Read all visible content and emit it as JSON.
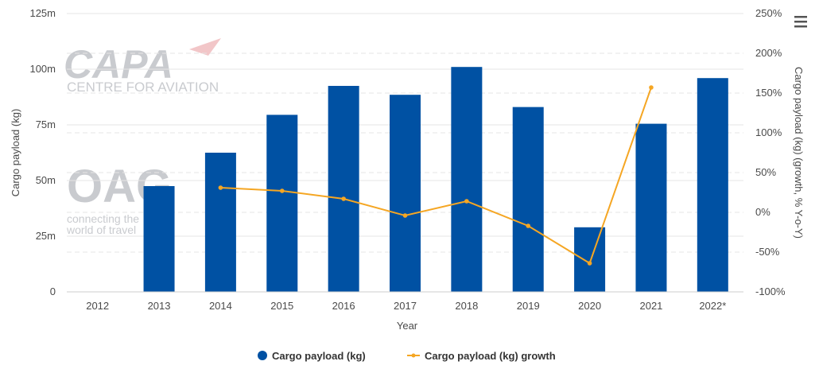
{
  "watermark": {
    "capa_logo": "CAPA",
    "capa_subtitle": "CENTRE FOR AVIATION",
    "oag_logo": "OAG",
    "oag_tagline_1": "connecting the",
    "oag_tagline_2": "world of travel"
  },
  "menu_icon": "hamburger-menu-icon",
  "colors": {
    "bars": "#0051a3",
    "line": "#f5a623",
    "grid": "#e6e6e6",
    "text": "#4a4a4a"
  },
  "chart_data": {
    "type": "bar",
    "categories": [
      "2012",
      "2013",
      "2014",
      "2015",
      "2016",
      "2017",
      "2018",
      "2019",
      "2020",
      "2021",
      "2022*"
    ],
    "xlabel": "Year",
    "ylabel": "Cargo payload (kg)",
    "y2label": "Cargo payload (kg) (growth, % Y-o-Y)",
    "ylim": [
      0,
      125
    ],
    "y2lim": [
      -100,
      250
    ],
    "y_ticks": [
      "0",
      "25m",
      "50m",
      "75m",
      "100m",
      "125m"
    ],
    "y2_ticks": [
      "-100%",
      "-50%",
      "0%",
      "50%",
      "100%",
      "150%",
      "200%",
      "250%"
    ],
    "grid": true,
    "legend_position": "bottom",
    "series": [
      {
        "name": "Cargo payload (kg)",
        "type": "bar",
        "axis": "left",
        "values": [
          null,
          47.5,
          62.5,
          79.5,
          92.5,
          88.5,
          101,
          83,
          29,
          75.5,
          96
        ]
      },
      {
        "name": "Cargo payload (kg) growth",
        "type": "line",
        "axis": "right",
        "values": [
          null,
          null,
          31,
          27,
          17,
          -4,
          14,
          -17,
          -64,
          157,
          null
        ]
      }
    ]
  }
}
